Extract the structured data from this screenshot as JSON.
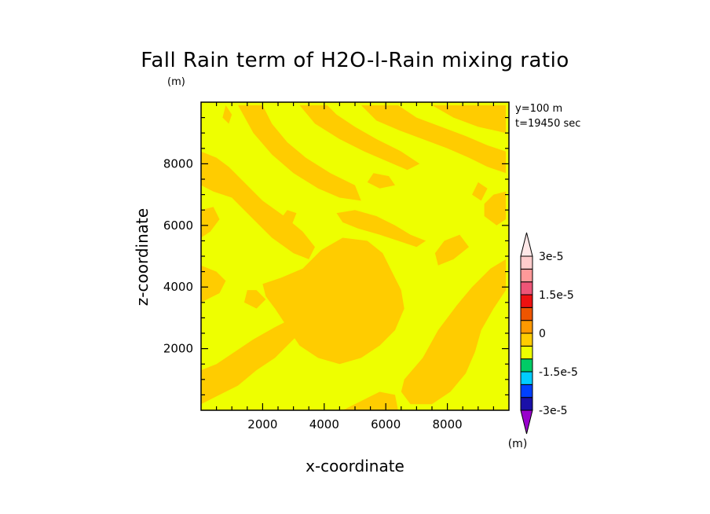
{
  "colors": {
    "background": "#ffffff",
    "field_base": "#eeff00",
    "field_patch": "#ffcc00",
    "frame": "#000000"
  },
  "chart_data": {
    "type": "heatmap",
    "title": "Fall Rain term of H2O-l-Rain mixing ratio",
    "unit_label": "(m)",
    "annotations": [
      "y=100 m",
      "t=19450 sec"
    ],
    "x_axis": {
      "label": "x-coordinate",
      "range": [
        0,
        10000
      ],
      "major_ticks": [
        2000,
        4000,
        6000,
        8000
      ],
      "minor_step": 500
    },
    "y_axis": {
      "label": "z-coordinate",
      "range": [
        0,
        10000
      ],
      "major_ticks": [
        2000,
        4000,
        6000,
        8000
      ],
      "minor_step": 500
    },
    "legend": {
      "placement": "right",
      "unit_label": "(m)",
      "levels": [
        -3e-05,
        -2.5e-05,
        -2e-05,
        -1.5e-05,
        -1e-05,
        -5e-06,
        0,
        5e-06,
        1e-05,
        1.5e-05,
        2e-05,
        2.5e-05,
        3e-05
      ],
      "colors": [
        "#9900cc",
        "#1a10a8",
        "#0040ff",
        "#00ccff",
        "#00cc66",
        "#eeff00",
        "#ffcc00",
        "#ff9900",
        "#ee5500",
        "#ee1111",
        "#ee5577",
        "#ff9999",
        "#ffcccc",
        "#ffe8e8"
      ],
      "tick_labels": [
        {
          "value": 3e-05,
          "text": "3e-5"
        },
        {
          "value": 1.5e-05,
          "text": "1.5e-5"
        },
        {
          "value": 0,
          "text": "0"
        },
        {
          "value": -1.5e-05,
          "text": "-1.5e-5"
        },
        {
          "value": -3e-05,
          "text": "-3e-5"
        }
      ]
    },
    "field_levels_present": [
      -5e-06,
      0
    ],
    "patches": [
      [
        [
          0,
          7300
        ],
        [
          400,
          7100
        ],
        [
          1000,
          6900
        ],
        [
          1700,
          6200
        ],
        [
          2300,
          5600
        ],
        [
          3000,
          5100
        ],
        [
          3500,
          4900
        ],
        [
          3700,
          5300
        ],
        [
          3300,
          5800
        ],
        [
          2700,
          6300
        ],
        [
          2000,
          6800
        ],
        [
          1400,
          7400
        ],
        [
          900,
          7900
        ],
        [
          500,
          8200
        ],
        [
          0,
          8400
        ]
      ],
      [
        [
          1200,
          9900
        ],
        [
          1700,
          9000
        ],
        [
          2300,
          8300
        ],
        [
          3000,
          7700
        ],
        [
          3800,
          7200
        ],
        [
          4500,
          6900
        ],
        [
          5200,
          6800
        ],
        [
          5000,
          7300
        ],
        [
          4200,
          7700
        ],
        [
          3400,
          8200
        ],
        [
          2800,
          8700
        ],
        [
          2300,
          9300
        ],
        [
          2000,
          9900
        ]
      ],
      [
        [
          3200,
          9900
        ],
        [
          3700,
          9300
        ],
        [
          4500,
          8800
        ],
        [
          5300,
          8400
        ],
        [
          6000,
          8100
        ],
        [
          6700,
          7800
        ],
        [
          7100,
          8000
        ],
        [
          6500,
          8400
        ],
        [
          5700,
          8800
        ],
        [
          5000,
          9200
        ],
        [
          4400,
          9600
        ],
        [
          4100,
          9900
        ]
      ],
      [
        [
          5200,
          9900
        ],
        [
          5700,
          9400
        ],
        [
          6400,
          9100
        ],
        [
          7200,
          8800
        ],
        [
          8000,
          8500
        ],
        [
          8700,
          8200
        ],
        [
          9300,
          7900
        ],
        [
          9900,
          7700
        ],
        [
          9900,
          8400
        ],
        [
          9300,
          8600
        ],
        [
          8600,
          8900
        ],
        [
          7800,
          9200
        ],
        [
          7000,
          9500
        ],
        [
          6400,
          9900
        ]
      ],
      [
        [
          7500,
          9900
        ],
        [
          8200,
          9500
        ],
        [
          9000,
          9200
        ],
        [
          9900,
          9000
        ],
        [
          9900,
          9900
        ]
      ],
      [
        [
          2000,
          4100
        ],
        [
          2600,
          4300
        ],
        [
          3300,
          4600
        ],
        [
          3900,
          5200
        ],
        [
          4600,
          5600
        ],
        [
          5400,
          5500
        ],
        [
          5900,
          5100
        ],
        [
          6200,
          4500
        ],
        [
          6500,
          3900
        ],
        [
          6600,
          3300
        ],
        [
          6300,
          2600
        ],
        [
          5800,
          2100
        ],
        [
          5200,
          1700
        ],
        [
          4500,
          1500
        ],
        [
          3800,
          1700
        ],
        [
          3200,
          2100
        ],
        [
          2800,
          2700
        ],
        [
          2400,
          3300
        ],
        [
          2100,
          3700
        ]
      ],
      [
        [
          6600,
          1000
        ],
        [
          7200,
          1700
        ],
        [
          7700,
          2600
        ],
        [
          8300,
          3400
        ],
        [
          8800,
          4000
        ],
        [
          9400,
          4600
        ],
        [
          9900,
          4900
        ],
        [
          9900,
          3900
        ],
        [
          9500,
          3300
        ],
        [
          9100,
          2600
        ],
        [
          8900,
          1900
        ],
        [
          8600,
          1200
        ],
        [
          8100,
          600
        ],
        [
          7500,
          200
        ],
        [
          6800,
          200
        ],
        [
          6500,
          600
        ]
      ],
      [
        [
          0,
          200
        ],
        [
          600,
          500
        ],
        [
          1200,
          800
        ],
        [
          1800,
          1300
        ],
        [
          2400,
          1700
        ],
        [
          2900,
          2200
        ],
        [
          3300,
          2600
        ],
        [
          3000,
          3000
        ],
        [
          2400,
          2700
        ],
        [
          1700,
          2300
        ],
        [
          1100,
          1900
        ],
        [
          500,
          1500
        ],
        [
          0,
          1300
        ]
      ],
      [
        [
          0,
          4700
        ],
        [
          500,
          4500
        ],
        [
          800,
          4200
        ],
        [
          600,
          3800
        ],
        [
          200,
          3600
        ],
        [
          0,
          3500
        ]
      ],
      [
        [
          3800,
          4800
        ],
        [
          4400,
          4500
        ],
        [
          5100,
          4200
        ],
        [
          5700,
          4400
        ],
        [
          6000,
          4900
        ],
        [
          5500,
          5200
        ],
        [
          4800,
          5300
        ],
        [
          4200,
          5200
        ]
      ],
      [
        [
          4400,
          6400
        ],
        [
          5000,
          6500
        ],
        [
          5700,
          6300
        ],
        [
          6300,
          6000
        ],
        [
          6800,
          5700
        ],
        [
          7300,
          5500
        ],
        [
          7000,
          5300
        ],
        [
          6400,
          5500
        ],
        [
          5800,
          5700
        ],
        [
          5100,
          5900
        ],
        [
          4600,
          6100
        ]
      ],
      [
        [
          800,
          9900
        ],
        [
          1000,
          9600
        ],
        [
          900,
          9300
        ],
        [
          700,
          9500
        ]
      ],
      [
        [
          9200,
          6300
        ],
        [
          9600,
          6000
        ],
        [
          9900,
          6200
        ],
        [
          9900,
          7100
        ],
        [
          9500,
          7000
        ],
        [
          9200,
          6700
        ]
      ],
      [
        [
          4600,
          0
        ],
        [
          5200,
          300
        ],
        [
          5800,
          600
        ],
        [
          6300,
          500
        ],
        [
          6400,
          0
        ]
      ],
      [
        [
          0,
          5600
        ],
        [
          300,
          5800
        ],
        [
          600,
          6200
        ],
        [
          400,
          6600
        ],
        [
          0,
          6500
        ]
      ],
      [
        [
          7700,
          4700
        ],
        [
          8200,
          4900
        ],
        [
          8700,
          5300
        ],
        [
          8400,
          5700
        ],
        [
          7900,
          5500
        ],
        [
          7600,
          5100
        ]
      ],
      [
        [
          2600,
          5600
        ],
        [
          2900,
          5900
        ],
        [
          3100,
          6400
        ],
        [
          2800,
          6500
        ],
        [
          2500,
          6100
        ]
      ],
      [
        [
          5400,
          7400
        ],
        [
          5800,
          7200
        ],
        [
          6300,
          7300
        ],
        [
          6100,
          7600
        ],
        [
          5600,
          7700
        ]
      ],
      [
        [
          1400,
          3500
        ],
        [
          1800,
          3300
        ],
        [
          2100,
          3600
        ],
        [
          1800,
          3900
        ],
        [
          1500,
          3900
        ]
      ],
      [
        [
          8800,
          7000
        ],
        [
          9100,
          6800
        ],
        [
          9300,
          7200
        ],
        [
          9000,
          7400
        ]
      ]
    ]
  }
}
